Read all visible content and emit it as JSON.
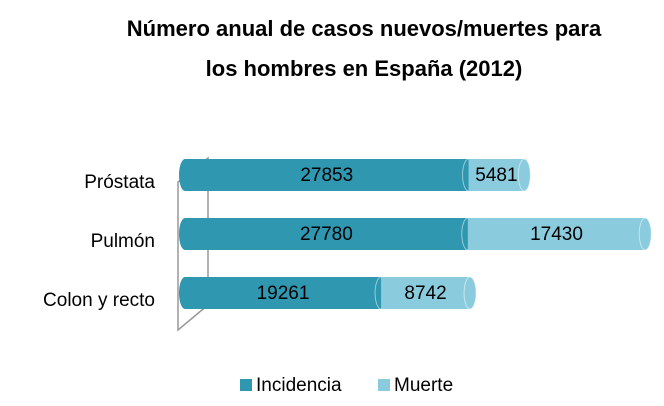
{
  "chart_data": {
    "type": "bar",
    "orientation": "horizontal",
    "stacked": true,
    "title": [
      "Número anual de casos nuevos/muertes para",
      "los hombres en España (2012)"
    ],
    "categories": [
      "Próstata",
      "Pulmón",
      "Colon y recto"
    ],
    "series": [
      {
        "name": "Incidencia",
        "color": "#2f97af",
        "values": [
          27853,
          27780,
          19261
        ]
      },
      {
        "name": "Muerte",
        "color": "#8acbdd",
        "values": [
          5481,
          17430,
          8742
        ]
      }
    ],
    "xlim": [
      0,
      50000
    ]
  }
}
